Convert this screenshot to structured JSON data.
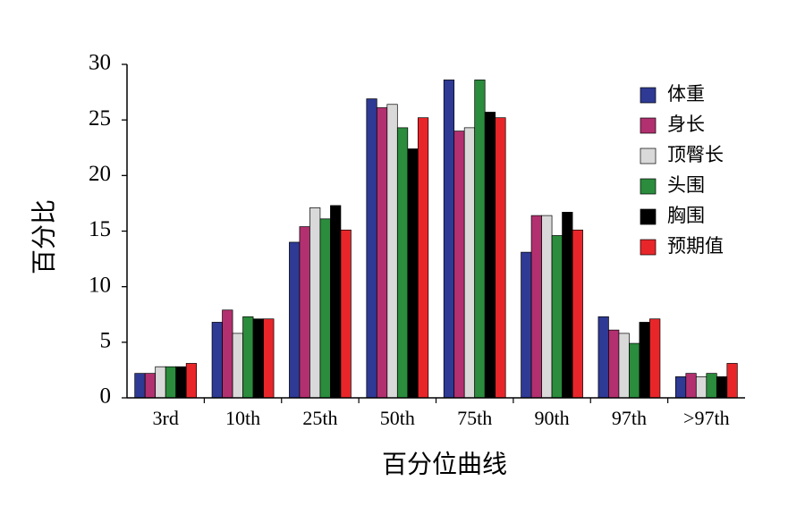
{
  "chart_data": {
    "type": "bar",
    "x_label": "百分位曲线",
    "y_label": "百分比",
    "categories": [
      "3rd",
      "10th",
      "25th",
      "50th",
      "75th",
      "90th",
      "97th",
      ">97th"
    ],
    "series": [
      {
        "name": "体重",
        "color": "#2e3a94",
        "values": [
          2.2,
          6.8,
          14.0,
          26.9,
          28.6,
          13.1,
          7.3,
          1.9
        ]
      },
      {
        "name": "身长",
        "color": "#b2306f",
        "values": [
          2.2,
          7.9,
          15.4,
          26.1,
          24.0,
          16.4,
          6.1,
          2.2
        ]
      },
      {
        "name": "顶臀长",
        "color": "#d9d9d9",
        "values": [
          2.8,
          5.8,
          17.1,
          26.4,
          24.3,
          16.4,
          5.8,
          1.9
        ]
      },
      {
        "name": "头围",
        "color": "#2a8c3c",
        "values": [
          2.8,
          7.3,
          16.1,
          24.3,
          28.6,
          14.6,
          4.9,
          2.2
        ]
      },
      {
        "name": "胸围",
        "color": "#000000",
        "values": [
          2.8,
          7.1,
          17.3,
          22.4,
          25.7,
          16.7,
          6.8,
          1.9
        ]
      },
      {
        "name": "预期值",
        "color": "#e8262a",
        "values": [
          3.1,
          7.1,
          15.1,
          25.2,
          25.2,
          15.1,
          7.1,
          3.1
        ]
      }
    ],
    "ylim": [
      0,
      30
    ],
    "yticks": [
      0,
      5,
      10,
      15,
      20,
      25,
      30
    ],
    "legend": "upper right"
  }
}
